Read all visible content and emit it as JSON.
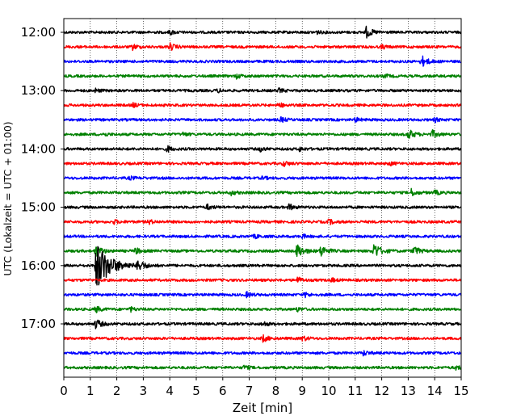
{
  "chart_data": {
    "type": "line",
    "title": "",
    "xlabel": "Zeit  [min]",
    "ylabel": "UTC (Lokalzeit = UTC + 01:00)",
    "xlim": [
      0,
      15
    ],
    "x_ticks": [
      0,
      1,
      2,
      3,
      4,
      5,
      6,
      7,
      8,
      9,
      10,
      11,
      12,
      13,
      14,
      15
    ],
    "y_ticks": [
      "12:00",
      "13:00",
      "14:00",
      "15:00",
      "16:00",
      "17:00"
    ],
    "grid": "vertical dotted at each minute",
    "trace_interval_min": 15,
    "trace_colors": [
      "#000000",
      "#ff0000",
      "#0000ff",
      "#008000"
    ],
    "series": [
      {
        "name": "12:00",
        "color": "#000000",
        "events": [
          [
            4.0,
            1.4
          ],
          [
            9.5,
            1.2
          ],
          [
            11.4,
            3.5
          ]
        ]
      },
      {
        "name": "12:15",
        "color": "#ff0000",
        "events": [
          [
            2.6,
            1.6
          ],
          [
            4.0,
            2.2
          ],
          [
            12.0,
            1.2
          ]
        ]
      },
      {
        "name": "12:30",
        "color": "#0000ff",
        "events": [
          [
            13.5,
            3.5
          ]
        ]
      },
      {
        "name": "12:45",
        "color": "#008000",
        "events": [
          [
            6.5,
            1.4
          ],
          [
            12.1,
            1.1
          ]
        ]
      },
      {
        "name": "13:00",
        "color": "#000000",
        "events": [
          [
            1.2,
            1.0
          ],
          [
            5.8,
            1.0
          ],
          [
            8.1,
            1.2
          ]
        ]
      },
      {
        "name": "13:15",
        "color": "#ff0000",
        "events": [
          [
            2.6,
            1.2
          ],
          [
            8.1,
            1.6
          ]
        ]
      },
      {
        "name": "13:30",
        "color": "#0000ff",
        "events": [
          [
            8.2,
            1.4
          ],
          [
            11.0,
            1.2
          ],
          [
            14.0,
            1.2
          ]
        ]
      },
      {
        "name": "13:45",
        "color": "#008000",
        "events": [
          [
            1.5,
            1.0
          ],
          [
            4.5,
            1.0
          ],
          [
            13.0,
            3.2
          ],
          [
            13.9,
            2.4
          ]
        ]
      },
      {
        "name": "14:00",
        "color": "#000000",
        "events": [
          [
            3.9,
            1.8
          ],
          [
            7.4,
            1.4
          ],
          [
            8.9,
            1.2
          ]
        ]
      },
      {
        "name": "14:15",
        "color": "#ff0000",
        "events": [
          [
            8.3,
            1.6
          ],
          [
            12.3,
            1.1
          ]
        ]
      },
      {
        "name": "14:30",
        "color": "#0000ff",
        "events": [
          [
            2.5,
            1.0
          ],
          [
            7.5,
            1.0
          ]
        ]
      },
      {
        "name": "14:45",
        "color": "#008000",
        "events": [
          [
            6.3,
            1.4
          ],
          [
            13.1,
            2.2
          ],
          [
            14.0,
            1.4
          ]
        ]
      },
      {
        "name": "15:00",
        "color": "#000000",
        "events": [
          [
            5.4,
            1.6
          ],
          [
            8.5,
            1.8
          ]
        ]
      },
      {
        "name": "15:15",
        "color": "#ff0000",
        "events": [
          [
            1.9,
            1.2
          ],
          [
            3.2,
            1.4
          ],
          [
            10.0,
            1.6
          ]
        ]
      },
      {
        "name": "15:30",
        "color": "#0000ff",
        "events": [
          [
            7.2,
            1.2
          ],
          [
            9.0,
            1.1
          ]
        ]
      },
      {
        "name": "15:45",
        "color": "#008000",
        "events": [
          [
            1.2,
            3.5
          ],
          [
            2.7,
            2.0
          ],
          [
            8.8,
            4.5
          ],
          [
            9.7,
            3.5
          ],
          [
            11.7,
            5.0
          ],
          [
            13.2,
            3.0
          ]
        ]
      },
      {
        "name": "16:00",
        "color": "#000000",
        "events": [
          [
            1.22,
            16.0
          ],
          [
            2.8,
            3.5
          ]
        ]
      },
      {
        "name": "16:15",
        "color": "#ff0000",
        "events": [
          [
            8.8,
            2.0
          ],
          [
            10.1,
            1.2
          ]
        ]
      },
      {
        "name": "16:30",
        "color": "#0000ff",
        "events": [
          [
            6.9,
            1.5
          ],
          [
            9.1,
            1.4
          ]
        ]
      },
      {
        "name": "16:45",
        "color": "#008000",
        "events": [
          [
            1.2,
            2.0
          ],
          [
            2.5,
            1.4
          ],
          [
            8.8,
            1.2
          ]
        ]
      },
      {
        "name": "17:00",
        "color": "#000000",
        "events": [
          [
            1.2,
            3.0
          ],
          [
            7.5,
            1.5
          ]
        ]
      },
      {
        "name": "17:15",
        "color": "#ff0000",
        "events": [
          [
            7.5,
            2.2
          ],
          [
            9.0,
            1.5
          ]
        ]
      },
      {
        "name": "17:30",
        "color": "#0000ff",
        "events": [
          [
            11.3,
            1.5
          ]
        ]
      },
      {
        "name": "17:45",
        "color": "#008000",
        "events": [
          [
            6.8,
            1.2
          ],
          [
            14.8,
            1.2
          ]
        ]
      }
    ]
  }
}
